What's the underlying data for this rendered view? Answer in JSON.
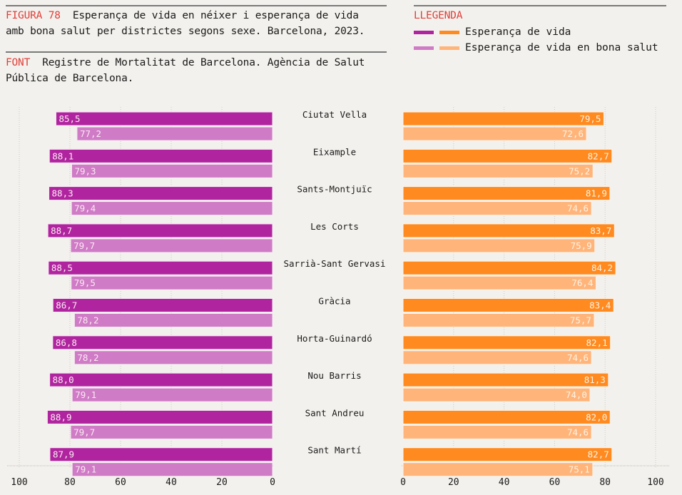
{
  "header": {
    "figure_label": "FIGURA 78",
    "title_line1": "Esperança de vida  en néixer i esperança de vida",
    "title_line2": "amb bona salut per districtes segons sexe. Barcelona, 2023.",
    "source_label": "FONT",
    "source_line1": "Registre de Mortalitat de Barcelona. Agència de Salut",
    "source_line2": "Pública de Barcelona."
  },
  "legend": {
    "title": "LLEGENDA",
    "items": [
      {
        "label": "Esperança de vida",
        "colors": [
          "#b0259f",
          "#ff8a1f"
        ]
      },
      {
        "label": "Esperança de vida en bona salut",
        "colors": [
          "#cf7bc6",
          "#ffb47a"
        ]
      }
    ]
  },
  "colors": {
    "women_le": "#b0259f",
    "women_hle": "#cf7bc6",
    "men_le": "#ff8a1f",
    "men_hle": "#ffb47a",
    "accent_red": "#e0403a"
  },
  "chart_data": [
    {
      "type": "bar",
      "orientation": "horizontal",
      "direction": "right-to-left",
      "side": "left",
      "categories": [
        "Ciutat Vella",
        "Eixample",
        "Sants-Montjuïc",
        "Les Corts",
        "Sarrià-Sant Gervasi",
        "Gràcia",
        "Horta-Guinardó",
        "Nou Barris",
        "Sant Andreu",
        "Sant Martí"
      ],
      "series": [
        {
          "name": "Esperança de vida",
          "color": "#b0259f",
          "values": [
            85.5,
            88.1,
            88.3,
            88.7,
            88.5,
            86.7,
            86.8,
            88.0,
            88.9,
            87.9
          ],
          "labels": [
            "85,5",
            "88,1",
            "88,3",
            "88,7",
            "88,5",
            "86,7",
            "86,8",
            "88,0",
            "88,9",
            "87,9"
          ]
        },
        {
          "name": "Esperança de vida en bona salut",
          "color": "#cf7bc6",
          "values": [
            77.2,
            79.3,
            79.4,
            79.7,
            79.5,
            78.2,
            78.2,
            79.1,
            79.7,
            79.1
          ],
          "labels": [
            "77,2",
            "79,3",
            "79,4",
            "79,7",
            "79,5",
            "78,2",
            "78,2",
            "79,1",
            "79,7",
            "79,1"
          ]
        }
      ],
      "xlim": [
        0,
        100
      ],
      "xticks": [
        100,
        80,
        60,
        40,
        20,
        0
      ],
      "grid": true
    },
    {
      "type": "bar",
      "orientation": "horizontal",
      "direction": "left-to-right",
      "side": "right",
      "categories": [
        "Ciutat Vella",
        "Eixample",
        "Sants-Montjuïc",
        "Les Corts",
        "Sarrià-Sant Gervasi",
        "Gràcia",
        "Horta-Guinardó",
        "Nou Barris",
        "Sant Andreu",
        "Sant Martí"
      ],
      "series": [
        {
          "name": "Esperança de vida",
          "color": "#ff8a1f",
          "values": [
            79.5,
            82.7,
            81.9,
            83.7,
            84.2,
            83.4,
            82.1,
            81.3,
            82.0,
            82.7
          ],
          "labels": [
            "79,5",
            "82,7",
            "81,9",
            "83,7",
            "84,2",
            "83,4",
            "82,1",
            "81,3",
            "82,0",
            "82,7"
          ]
        },
        {
          "name": "Esperança de vida en bona salut",
          "color": "#ffb47a",
          "values": [
            72.6,
            75.2,
            74.6,
            75.9,
            76.4,
            75.7,
            74.6,
            74.0,
            74.6,
            75.1
          ],
          "labels": [
            "72,6",
            "75,2",
            "74,6",
            "75,9",
            "76,4",
            "75,7",
            "74,6",
            "74,0",
            "74,6",
            "75,1"
          ]
        }
      ],
      "xlim": [
        0,
        100
      ],
      "xticks": [
        0,
        20,
        40,
        60,
        80,
        100
      ],
      "grid": true
    }
  ]
}
